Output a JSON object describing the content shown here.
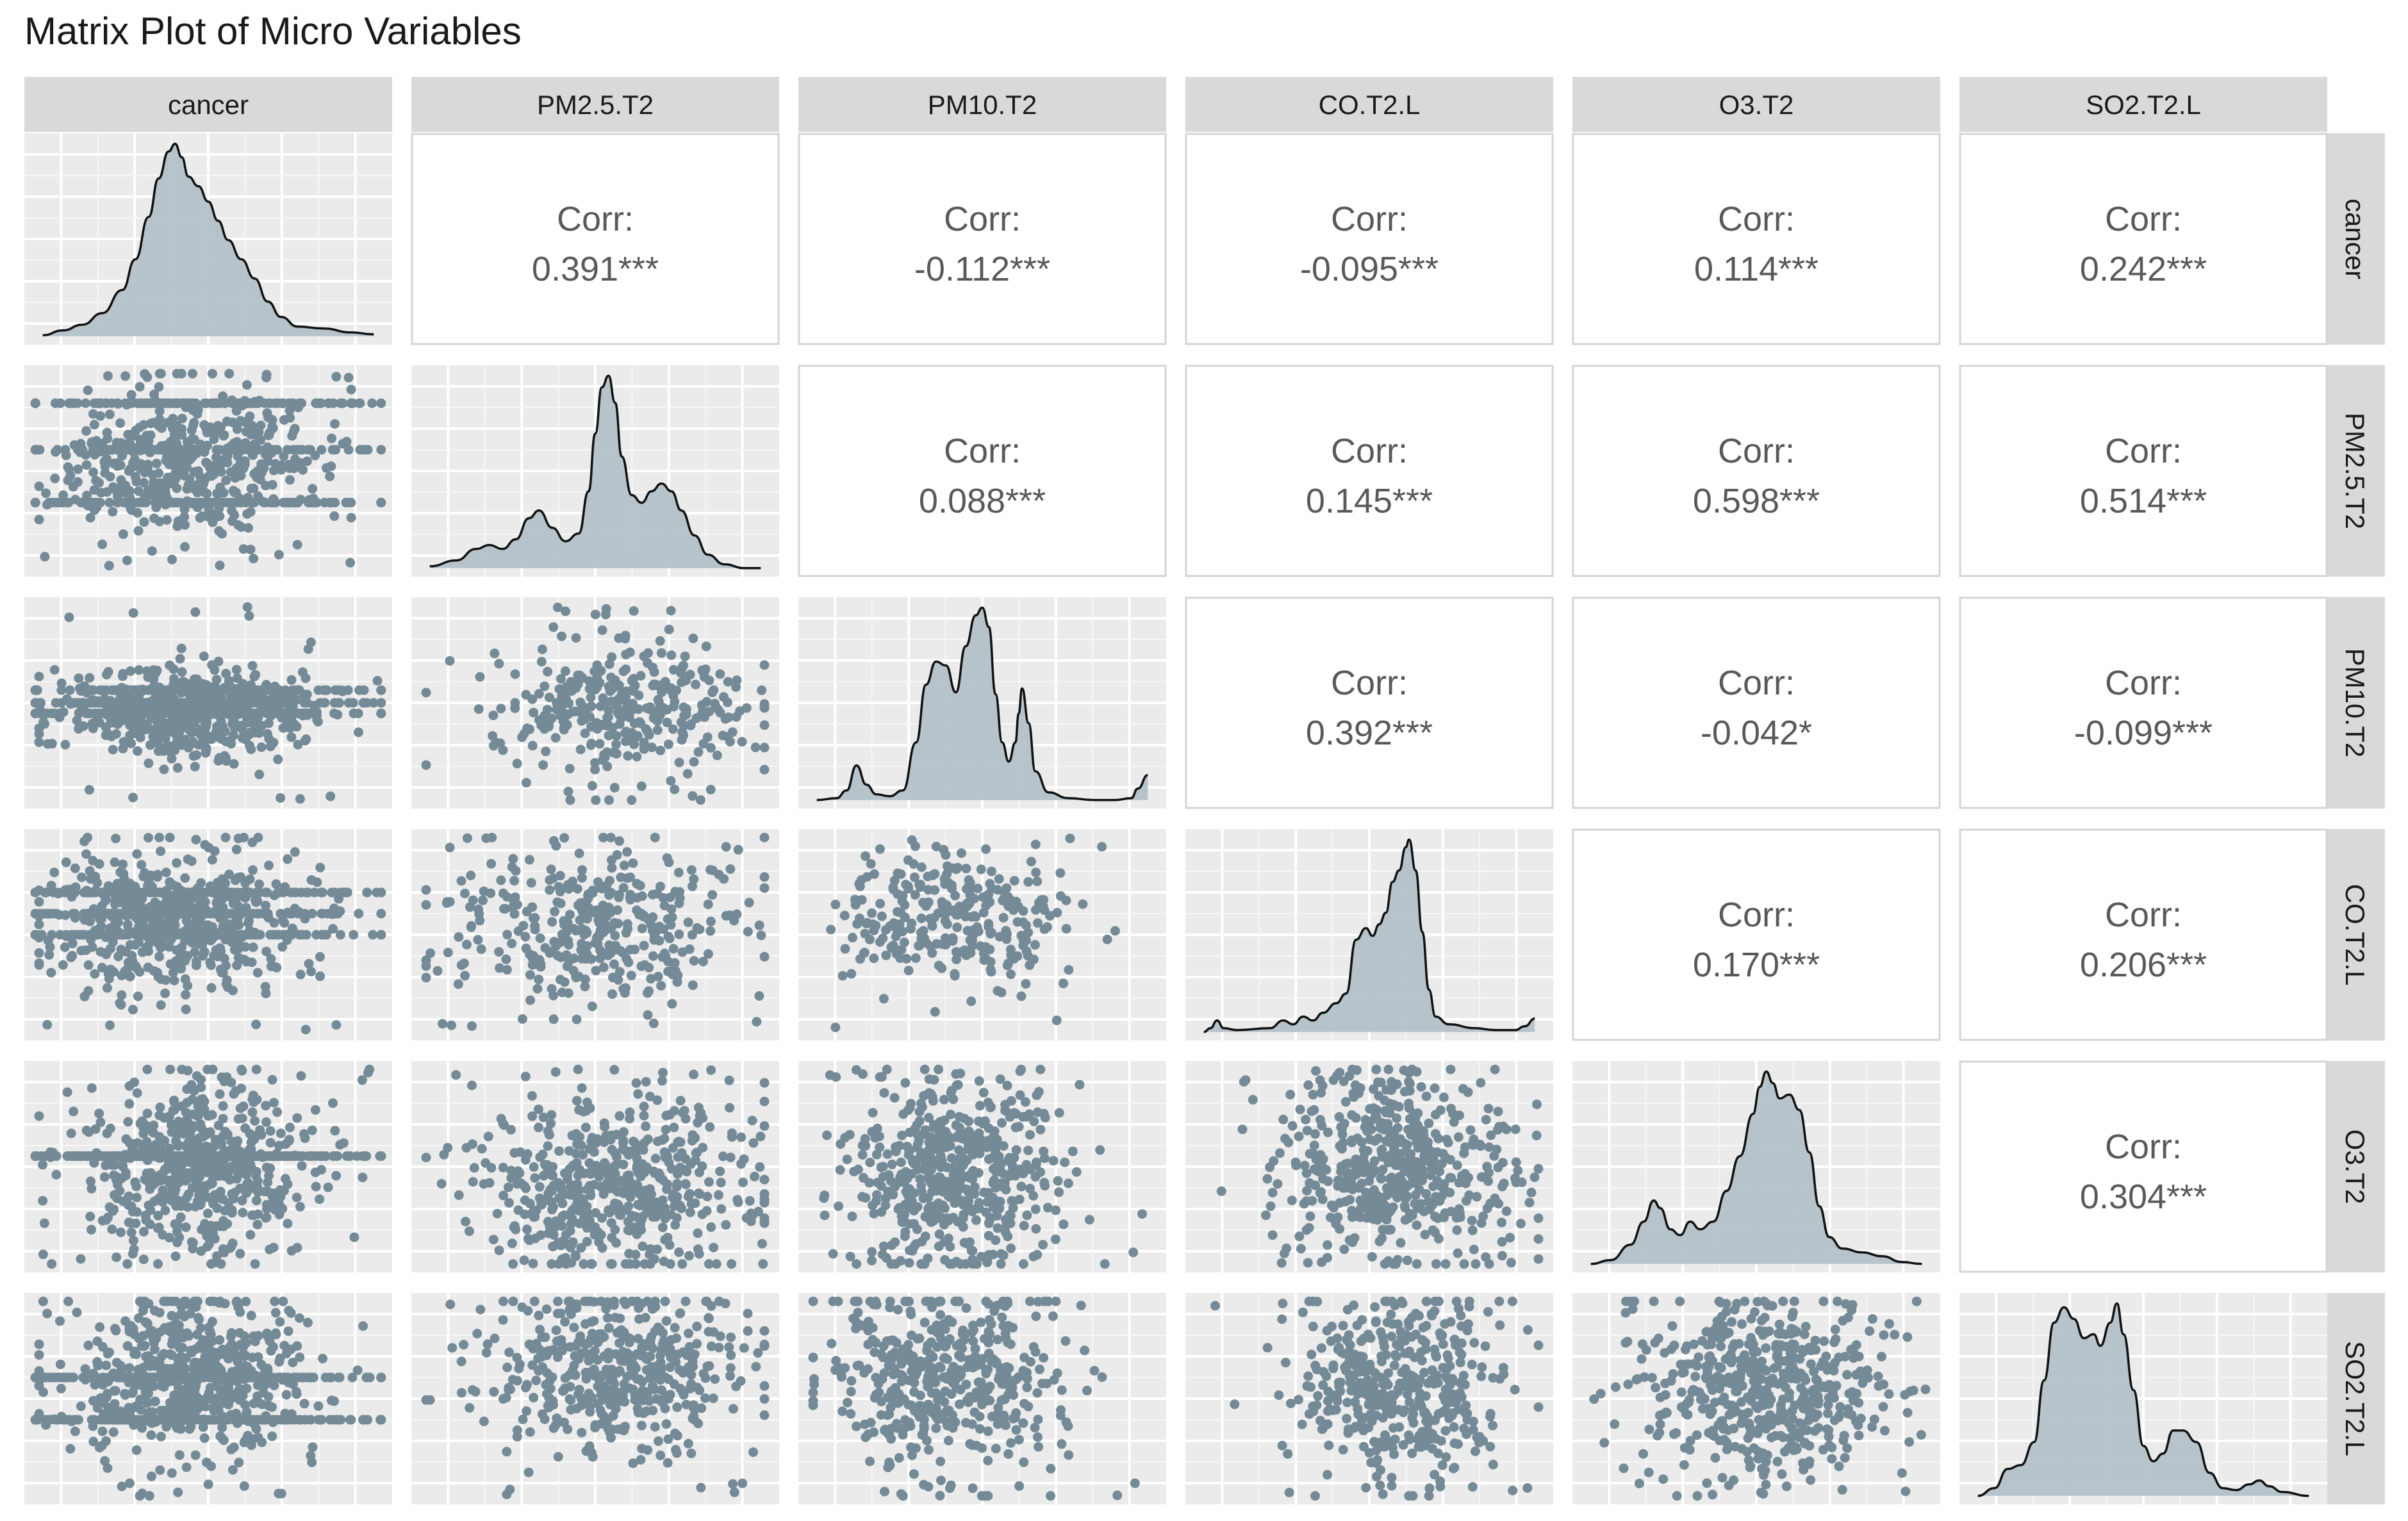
{
  "chart_data": {
    "type": "scatterplot-matrix",
    "title": "Matrix Plot of Micro Variables",
    "variables": [
      "cancer",
      "PM2.5.T2",
      "PM10.T2",
      "CO.T2.L",
      "O3.T2",
      "SO2.T2.L"
    ],
    "corr_label": "Corr:",
    "correlations": [
      {
        "row": 0,
        "col": 1,
        "value": "0.391***"
      },
      {
        "row": 0,
        "col": 2,
        "value": "-0.112***"
      },
      {
        "row": 0,
        "col": 3,
        "value": "-0.095***"
      },
      {
        "row": 0,
        "col": 4,
        "value": "0.114***"
      },
      {
        "row": 0,
        "col": 5,
        "value": "0.242***"
      },
      {
        "row": 1,
        "col": 2,
        "value": "0.088***"
      },
      {
        "row": 1,
        "col": 3,
        "value": "0.145***"
      },
      {
        "row": 1,
        "col": 4,
        "value": "0.598***"
      },
      {
        "row": 1,
        "col": 5,
        "value": "0.514***"
      },
      {
        "row": 2,
        "col": 3,
        "value": "0.392***"
      },
      {
        "row": 2,
        "col": 4,
        "value": "-0.042*"
      },
      {
        "row": 2,
        "col": 5,
        "value": "-0.099***"
      },
      {
        "row": 3,
        "col": 4,
        "value": "0.170***"
      },
      {
        "row": 3,
        "col": 5,
        "value": "0.206***"
      },
      {
        "row": 4,
        "col": 5,
        "value": "0.304***"
      }
    ],
    "diagonal": "density",
    "lower": "scatter",
    "upper": "correlation",
    "point_color": "#748a96",
    "density_fill": "#b4c1c8",
    "panel_background": "#ebebeb",
    "strip_background": "#d9d9d9",
    "grid": true,
    "density_shapes": [
      [
        [
          0.0,
          0.005
        ],
        [
          0.06,
          0.03
        ],
        [
          0.12,
          0.06
        ],
        [
          0.18,
          0.12
        ],
        [
          0.24,
          0.24
        ],
        [
          0.28,
          0.4
        ],
        [
          0.32,
          0.62
        ],
        [
          0.35,
          0.82
        ],
        [
          0.38,
          0.96
        ],
        [
          0.4,
          1.0
        ],
        [
          0.42,
          0.93
        ],
        [
          0.44,
          0.83
        ],
        [
          0.47,
          0.78
        ],
        [
          0.5,
          0.7
        ],
        [
          0.53,
          0.6
        ],
        [
          0.56,
          0.5
        ],
        [
          0.6,
          0.4
        ],
        [
          0.64,
          0.3
        ],
        [
          0.68,
          0.18
        ],
        [
          0.72,
          0.1
        ],
        [
          0.77,
          0.05
        ],
        [
          0.85,
          0.04
        ],
        [
          0.93,
          0.02
        ],
        [
          1.0,
          0.01
        ]
      ],
      [
        [
          0.0,
          0.01
        ],
        [
          0.08,
          0.04
        ],
        [
          0.14,
          0.1
        ],
        [
          0.18,
          0.12
        ],
        [
          0.22,
          0.1
        ],
        [
          0.26,
          0.15
        ],
        [
          0.3,
          0.26
        ],
        [
          0.33,
          0.3
        ],
        [
          0.37,
          0.21
        ],
        [
          0.41,
          0.14
        ],
        [
          0.45,
          0.18
        ],
        [
          0.48,
          0.4
        ],
        [
          0.5,
          0.7
        ],
        [
          0.52,
          0.94
        ],
        [
          0.54,
          1.0
        ],
        [
          0.56,
          0.86
        ],
        [
          0.58,
          0.58
        ],
        [
          0.61,
          0.38
        ],
        [
          0.64,
          0.34
        ],
        [
          0.67,
          0.4
        ],
        [
          0.7,
          0.44
        ],
        [
          0.73,
          0.4
        ],
        [
          0.76,
          0.3
        ],
        [
          0.8,
          0.17
        ],
        [
          0.84,
          0.07
        ],
        [
          0.89,
          0.02
        ],
        [
          0.95,
          0.0
        ],
        [
          1.0,
          0.0
        ]
      ],
      [
        [
          0.0,
          0.0
        ],
        [
          0.06,
          0.01
        ],
        [
          0.09,
          0.05
        ],
        [
          0.12,
          0.18
        ],
        [
          0.15,
          0.08
        ],
        [
          0.18,
          0.03
        ],
        [
          0.22,
          0.02
        ],
        [
          0.26,
          0.05
        ],
        [
          0.3,
          0.3
        ],
        [
          0.33,
          0.6
        ],
        [
          0.36,
          0.72
        ],
        [
          0.39,
          0.7
        ],
        [
          0.42,
          0.56
        ],
        [
          0.45,
          0.8
        ],
        [
          0.48,
          0.96
        ],
        [
          0.5,
          1.0
        ],
        [
          0.52,
          0.9
        ],
        [
          0.54,
          0.55
        ],
        [
          0.56,
          0.3
        ],
        [
          0.58,
          0.2
        ],
        [
          0.6,
          0.3
        ],
        [
          0.61,
          0.45
        ],
        [
          0.62,
          0.58
        ],
        [
          0.64,
          0.4
        ],
        [
          0.66,
          0.15
        ],
        [
          0.7,
          0.04
        ],
        [
          0.76,
          0.01
        ],
        [
          0.84,
          0.0
        ],
        [
          0.9,
          0.0
        ],
        [
          0.95,
          0.01
        ],
        [
          0.97,
          0.06
        ],
        [
          1.0,
          0.13
        ]
      ],
      [
        [
          0.0,
          0.0
        ],
        [
          0.02,
          0.02
        ],
        [
          0.04,
          0.06
        ],
        [
          0.06,
          0.02
        ],
        [
          0.1,
          0.01
        ],
        [
          0.2,
          0.02
        ],
        [
          0.24,
          0.06
        ],
        [
          0.27,
          0.04
        ],
        [
          0.3,
          0.08
        ],
        [
          0.33,
          0.06
        ],
        [
          0.36,
          0.1
        ],
        [
          0.4,
          0.15
        ],
        [
          0.43,
          0.2
        ],
        [
          0.46,
          0.48
        ],
        [
          0.49,
          0.54
        ],
        [
          0.51,
          0.5
        ],
        [
          0.53,
          0.56
        ],
        [
          0.55,
          0.62
        ],
        [
          0.57,
          0.78
        ],
        [
          0.59,
          0.84
        ],
        [
          0.61,
          0.96
        ],
        [
          0.62,
          1.0
        ],
        [
          0.64,
          0.84
        ],
        [
          0.66,
          0.52
        ],
        [
          0.68,
          0.22
        ],
        [
          0.7,
          0.08
        ],
        [
          0.74,
          0.04
        ],
        [
          0.82,
          0.02
        ],
        [
          0.88,
          0.01
        ],
        [
          0.94,
          0.01
        ],
        [
          0.97,
          0.03
        ],
        [
          1.0,
          0.07
        ]
      ],
      [
        [
          0.0,
          0.0
        ],
        [
          0.06,
          0.02
        ],
        [
          0.12,
          0.1
        ],
        [
          0.16,
          0.22
        ],
        [
          0.19,
          0.33
        ],
        [
          0.21,
          0.29
        ],
        [
          0.24,
          0.18
        ],
        [
          0.27,
          0.15
        ],
        [
          0.3,
          0.22
        ],
        [
          0.33,
          0.18
        ],
        [
          0.37,
          0.22
        ],
        [
          0.41,
          0.38
        ],
        [
          0.45,
          0.56
        ],
        [
          0.49,
          0.78
        ],
        [
          0.51,
          0.92
        ],
        [
          0.53,
          1.0
        ],
        [
          0.55,
          0.94
        ],
        [
          0.57,
          0.86
        ],
        [
          0.6,
          0.88
        ],
        [
          0.63,
          0.8
        ],
        [
          0.66,
          0.58
        ],
        [
          0.69,
          0.3
        ],
        [
          0.72,
          0.14
        ],
        [
          0.76,
          0.08
        ],
        [
          0.82,
          0.06
        ],
        [
          0.88,
          0.04
        ],
        [
          0.94,
          0.01
        ],
        [
          1.0,
          0.0
        ]
      ],
      [
        [
          0.0,
          0.0
        ],
        [
          0.05,
          0.04
        ],
        [
          0.09,
          0.14
        ],
        [
          0.13,
          0.16
        ],
        [
          0.17,
          0.28
        ],
        [
          0.2,
          0.6
        ],
        [
          0.23,
          0.9
        ],
        [
          0.26,
          0.98
        ],
        [
          0.29,
          0.92
        ],
        [
          0.32,
          0.82
        ],
        [
          0.35,
          0.84
        ],
        [
          0.37,
          0.78
        ],
        [
          0.4,
          0.9
        ],
        [
          0.42,
          1.0
        ],
        [
          0.44,
          0.84
        ],
        [
          0.47,
          0.55
        ],
        [
          0.5,
          0.26
        ],
        [
          0.53,
          0.18
        ],
        [
          0.56,
          0.22
        ],
        [
          0.59,
          0.34
        ],
        [
          0.62,
          0.34
        ],
        [
          0.66,
          0.28
        ],
        [
          0.7,
          0.12
        ],
        [
          0.74,
          0.04
        ],
        [
          0.78,
          0.03
        ],
        [
          0.82,
          0.06
        ],
        [
          0.85,
          0.08
        ],
        [
          0.88,
          0.05
        ],
        [
          0.92,
          0.02
        ],
        [
          1.0,
          0.0
        ]
      ]
    ],
    "scatter_specs": [
      {
        "row": 1,
        "col": 0,
        "cx": 0.45,
        "cy": 0.55,
        "sx": 0.17,
        "sy": 0.18,
        "n": 850,
        "stripes": [
          0.35,
          0.6,
          0.82
        ]
      },
      {
        "row": 2,
        "col": 0,
        "cx": 0.45,
        "cy": 0.45,
        "sx": 0.17,
        "sy": 0.11,
        "n": 950,
        "stripes": [
          0.45,
          0.5,
          0.56
        ]
      },
      {
        "row": 2,
        "col": 1,
        "cx": 0.58,
        "cy": 0.47,
        "sx": 0.17,
        "sy": 0.16,
        "n": 340,
        "stripes": []
      },
      {
        "row": 3,
        "col": 0,
        "cx": 0.4,
        "cy": 0.55,
        "sx": 0.18,
        "sy": 0.16,
        "n": 900,
        "stripes": [
          0.5,
          0.6,
          0.7
        ]
      },
      {
        "row": 3,
        "col": 1,
        "cx": 0.5,
        "cy": 0.55,
        "sx": 0.2,
        "sy": 0.18,
        "n": 360,
        "stripes": []
      },
      {
        "row": 3,
        "col": 2,
        "cx": 0.42,
        "cy": 0.58,
        "sx": 0.15,
        "sy": 0.15,
        "n": 280,
        "stripes": []
      },
      {
        "row": 4,
        "col": 0,
        "cx": 0.45,
        "cy": 0.5,
        "sx": 0.15,
        "sy": 0.22,
        "n": 1000,
        "stripes": [
          0.55
        ]
      },
      {
        "row": 4,
        "col": 1,
        "cx": 0.55,
        "cy": 0.4,
        "sx": 0.18,
        "sy": 0.2,
        "n": 550,
        "stripes": []
      },
      {
        "row": 4,
        "col": 2,
        "cx": 0.43,
        "cy": 0.45,
        "sx": 0.14,
        "sy": 0.22,
        "n": 520,
        "stripes": []
      },
      {
        "row": 4,
        "col": 3,
        "cx": 0.58,
        "cy": 0.48,
        "sx": 0.16,
        "sy": 0.2,
        "n": 520,
        "stripes": []
      },
      {
        "row": 5,
        "col": 0,
        "cx": 0.45,
        "cy": 0.6,
        "sx": 0.16,
        "sy": 0.2,
        "n": 1000,
        "stripes": [
          0.4,
          0.6
        ]
      },
      {
        "row": 5,
        "col": 1,
        "cx": 0.55,
        "cy": 0.65,
        "sx": 0.18,
        "sy": 0.2,
        "n": 450,
        "stripes": []
      },
      {
        "row": 5,
        "col": 2,
        "cx": 0.4,
        "cy": 0.6,
        "sx": 0.16,
        "sy": 0.22,
        "n": 450,
        "stripes": []
      },
      {
        "row": 5,
        "col": 3,
        "cx": 0.58,
        "cy": 0.55,
        "sx": 0.14,
        "sy": 0.22,
        "n": 420,
        "stripes": []
      },
      {
        "row": 5,
        "col": 4,
        "cx": 0.52,
        "cy": 0.55,
        "sx": 0.18,
        "sy": 0.2,
        "n": 520,
        "stripes": []
      }
    ]
  }
}
